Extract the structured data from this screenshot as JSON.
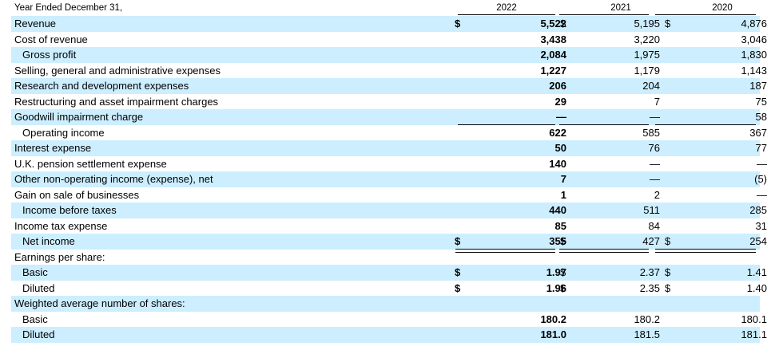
{
  "header": {
    "period_label": "Year Ended December 31,",
    "years": [
      "2022",
      "2021",
      "2020"
    ]
  },
  "currency_symbol": "$",
  "rows": [
    {
      "label": "Revenue",
      "y2022": "5,522",
      "y2021": "5,195",
      "y2020": "4,876"
    },
    {
      "label": "Cost of revenue",
      "y2022": "3,438",
      "y2021": "3,220",
      "y2020": "3,046"
    },
    {
      "label": "Gross profit",
      "y2022": "2,084",
      "y2021": "1,975",
      "y2020": "1,830"
    },
    {
      "label": "Selling, general and administrative expenses",
      "y2022": "1,227",
      "y2021": "1,179",
      "y2020": "1,143"
    },
    {
      "label": "Research and development expenses",
      "y2022": "206",
      "y2021": "204",
      "y2020": "187"
    },
    {
      "label": "Restructuring and asset impairment charges",
      "y2022": "29",
      "y2021": "7",
      "y2020": "75"
    },
    {
      "label": "Goodwill impairment charge",
      "y2022": "—",
      "y2021": "—",
      "y2020": "58"
    },
    {
      "label": "Operating income",
      "y2022": "622",
      "y2021": "585",
      "y2020": "367"
    },
    {
      "label": "Interest expense",
      "y2022": "50",
      "y2021": "76",
      "y2020": "77"
    },
    {
      "label": "U.K. pension settlement expense",
      "y2022": "140",
      "y2021": "—",
      "y2020": "—"
    },
    {
      "label": "Other non-operating income (expense), net",
      "y2022": "7",
      "y2021": "—",
      "y2020": "(5)"
    },
    {
      "label": "Gain on sale of businesses",
      "y2022": "1",
      "y2021": "2",
      "y2020": "—"
    },
    {
      "label": "Income before taxes",
      "y2022": "440",
      "y2021": "511",
      "y2020": "285"
    },
    {
      "label": "Income tax expense",
      "y2022": "85",
      "y2021": "84",
      "y2020": "31"
    },
    {
      "label": "Net income",
      "y2022": "355",
      "y2021": "427",
      "y2020": "254"
    },
    {
      "label": "Earnings per share:",
      "y2022": "",
      "y2021": "",
      "y2020": ""
    },
    {
      "label": "Basic",
      "y2022": "1.97",
      "y2021": "2.37",
      "y2020": "1.41"
    },
    {
      "label": "Diluted",
      "y2022": "1.96",
      "y2021": "2.35",
      "y2020": "1.40"
    },
    {
      "label": "Weighted average number of shares:",
      "y2022": "",
      "y2021": "",
      "y2020": ""
    },
    {
      "label": "Basic",
      "y2022": "180.2",
      "y2021": "180.2",
      "y2020": "180.1"
    },
    {
      "label": "Diluted",
      "y2022": "181.0",
      "y2021": "181.5",
      "y2020": "181.1"
    }
  ]
}
